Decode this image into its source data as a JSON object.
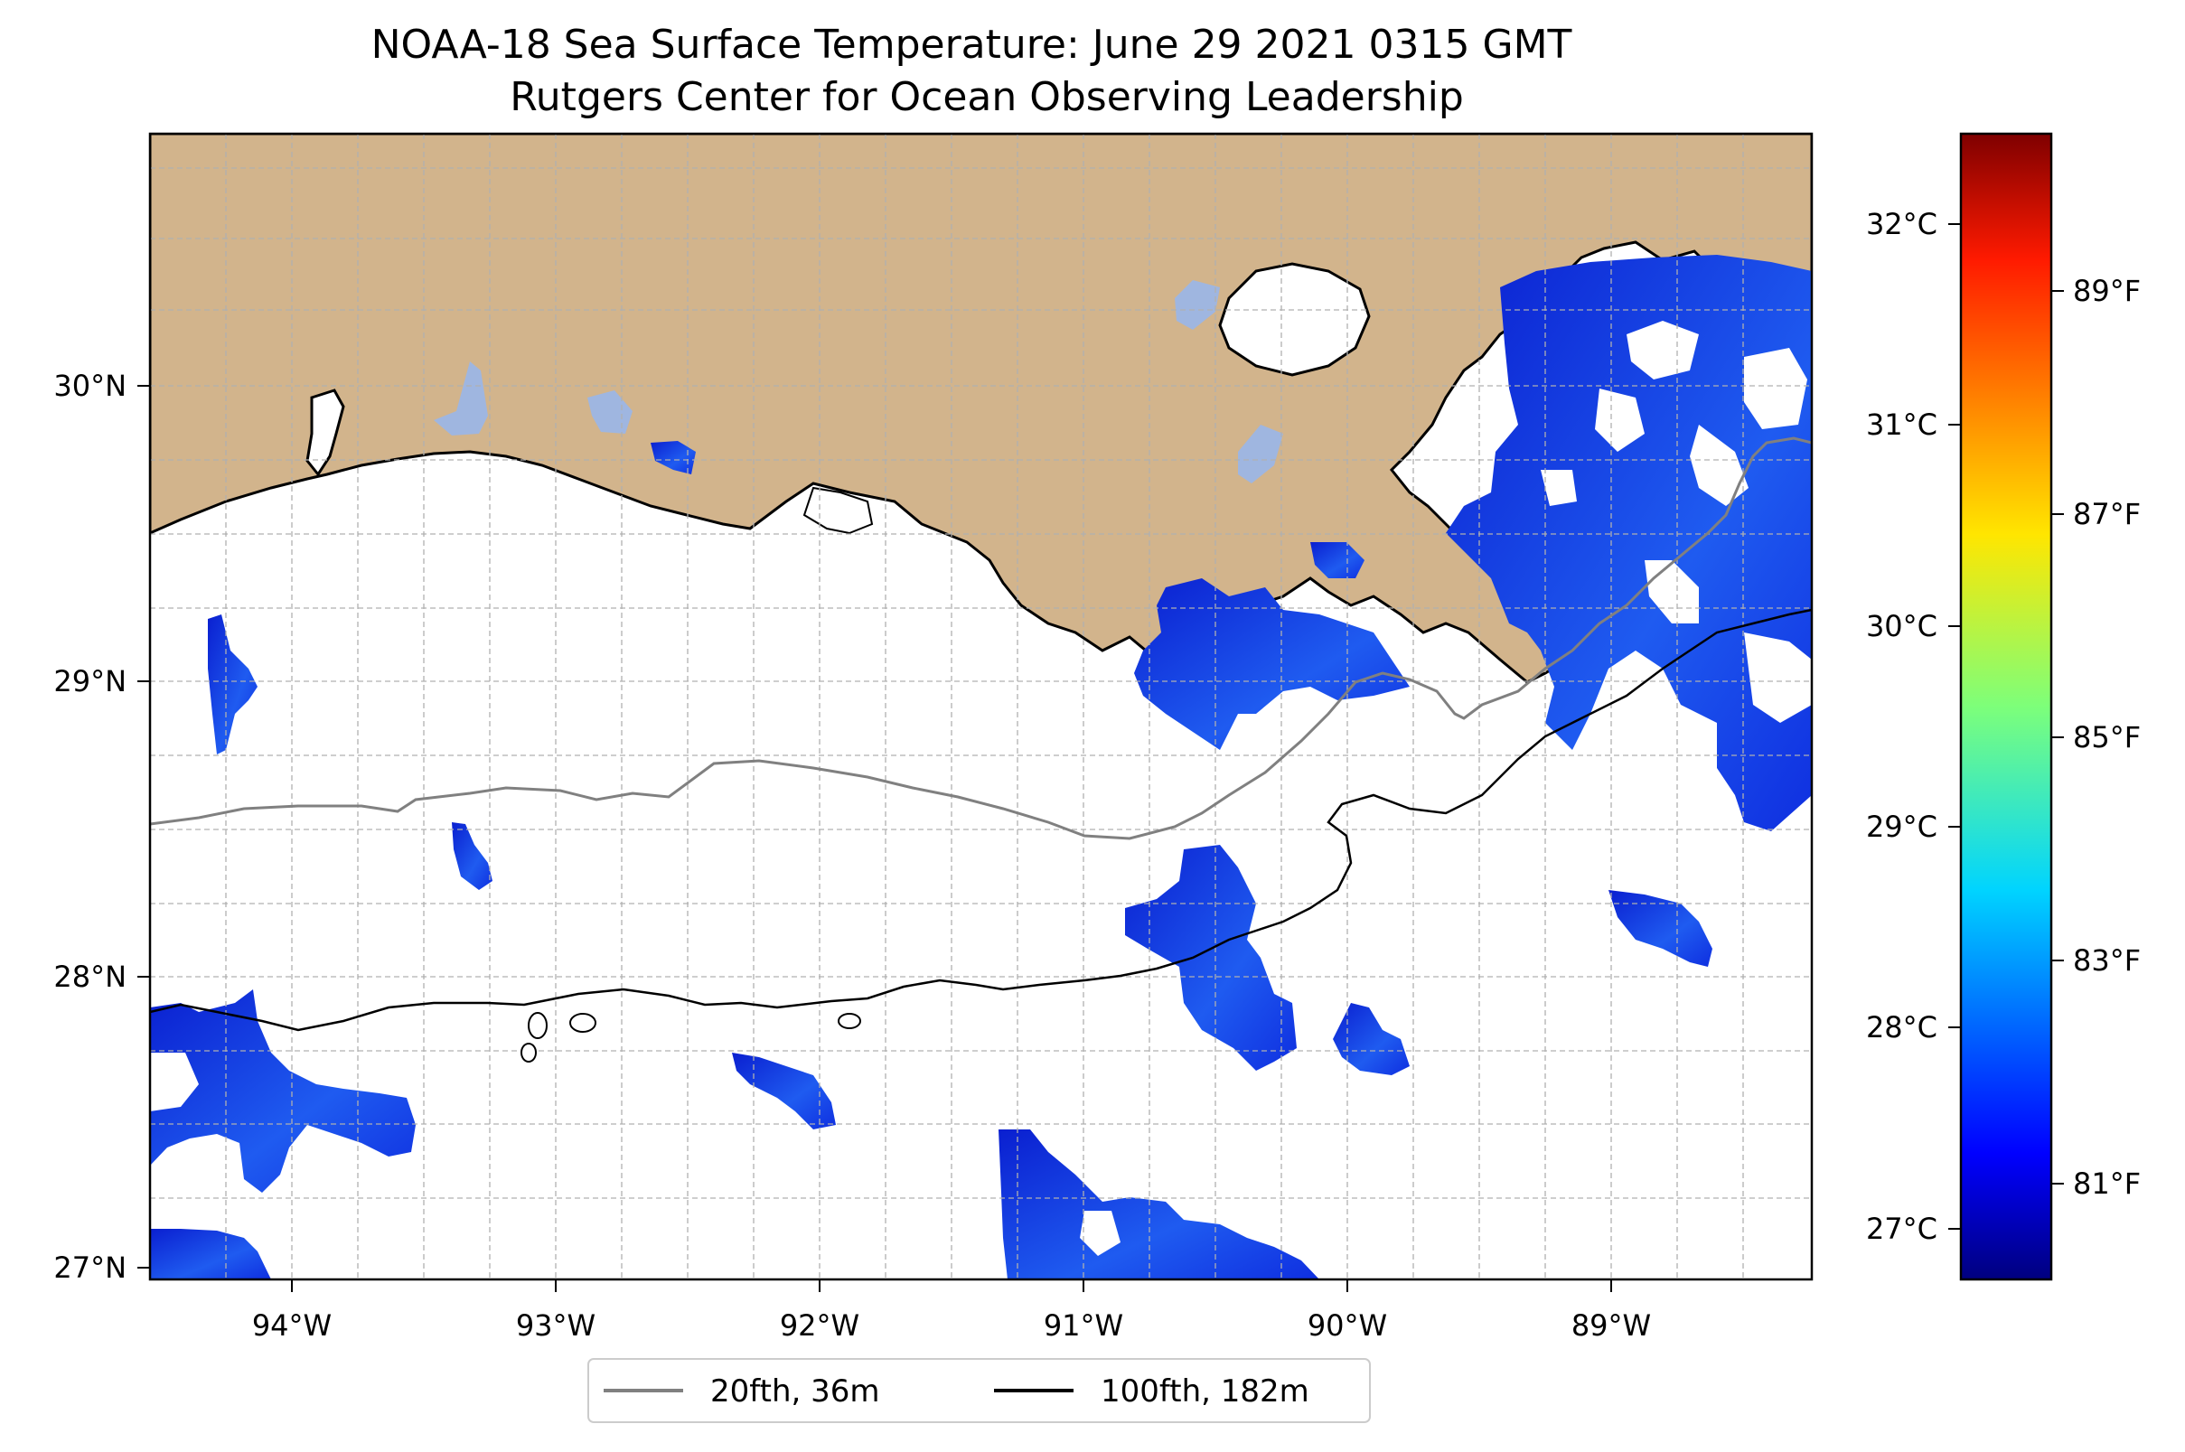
{
  "title": {
    "line1": "NOAA-18 Sea Surface Temperature: June 29 2021 0315 GMT",
    "line2": "Rutgers Center for Ocean Observing Leadership"
  },
  "map": {
    "type": "sea-surface-temperature",
    "extent": {
      "lon": [
        -94.55,
        -88.2
      ],
      "lat": [
        26.95,
        30.85
      ]
    },
    "grid": true,
    "lon_ticks": [
      "94°W",
      "93°W",
      "92°W",
      "91°W",
      "90°W",
      "89°W"
    ],
    "lat_ticks": [
      "27°N",
      "28°N",
      "29°N",
      "30°N"
    ],
    "colors": {
      "land": "#d2b48c",
      "lakes": "#9fb6e0",
      "ocean": "#ffffff"
    }
  },
  "colorbar": {
    "colormap": "jet",
    "range_c": [
      26.75,
      32.45
    ],
    "celsius_ticks": [
      "27°C",
      "28°C",
      "29°C",
      "30°C",
      "31°C",
      "32°C"
    ],
    "fahrenheit_ticks": [
      "81°F",
      "83°F",
      "85°F",
      "87°F",
      "89°F"
    ]
  },
  "legend": {
    "items": [
      {
        "label": "20fth, 36m",
        "color": "#808080"
      },
      {
        "label": "100fth, 182m",
        "color": "#000000"
      }
    ]
  }
}
